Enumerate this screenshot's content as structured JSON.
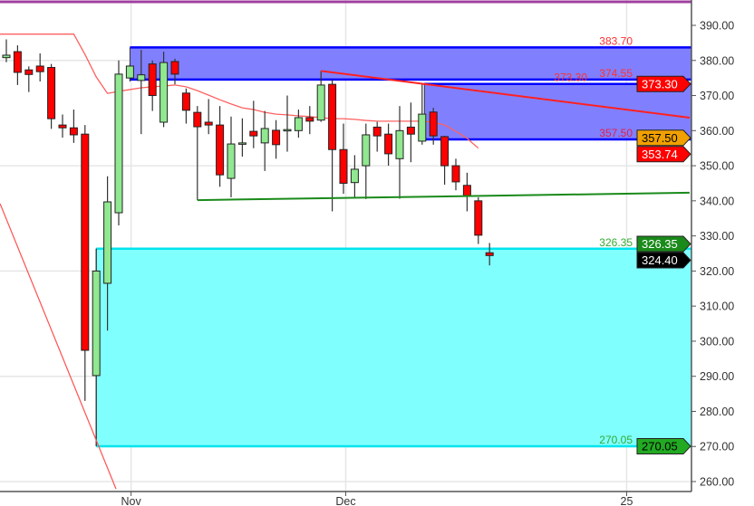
{
  "chart_data": {
    "type": "candlestick",
    "title": "",
    "ylim": [
      257,
      397
    ],
    "yticks": [
      390,
      380,
      370,
      360,
      350,
      340,
      330,
      320,
      310,
      300,
      290,
      280,
      270,
      260
    ],
    "ytick_labels": [
      "390.00",
      "380.00",
      "370.00",
      "360.00",
      "350.00",
      "340.00",
      "330.00",
      "320.00",
      "310.00",
      "300.00",
      "290.00",
      "280.00",
      "270.00",
      "260.00"
    ],
    "grid_y": [
      380,
      350,
      320,
      290,
      260
    ],
    "xticks": [
      {
        "label": "Nov",
        "index": 11.1
      },
      {
        "label": "Dec",
        "index": 30.2
      },
      {
        "label": "25",
        "index": 55.2
      }
    ],
    "colors": {
      "up": "#90e890",
      "down": "#ff0000",
      "zone_blue": "#8080ff",
      "zone_blue_edge": "#0000ff",
      "zone_cyan": "#80ffff",
      "zone_cyan_edge": "#00e5ee",
      "ma": "#ff6060",
      "trend_red": "#ff2020",
      "trend_green": "#1a8a1a",
      "top_line": "#a040a0"
    },
    "candles": [
      [
        380.8,
        381.5,
        386,
        379.5
      ],
      [
        382.5,
        376.6,
        384.3,
        373
      ],
      [
        377.3,
        376,
        378.3,
        371
      ],
      [
        378.4,
        376.8,
        382,
        374
      ],
      [
        378,
        363.4,
        379,
        360.5
      ],
      [
        361.6,
        360.8,
        364.6,
        358
      ],
      [
        360.8,
        358.8,
        366,
        356.5
      ],
      [
        359,
        297.4,
        361.6,
        283
      ],
      [
        290.2,
        320,
        326.4,
        270.05
      ],
      [
        316.5,
        339.7,
        347,
        303
      ],
      [
        336.6,
        376.1,
        380,
        333
      ],
      [
        375,
        378.4,
        379,
        374
      ],
      [
        374.3,
        375.9,
        383,
        359
      ],
      [
        379,
        370,
        380,
        365.6
      ],
      [
        362.4,
        379.4,
        382.5,
        361
      ],
      [
        379.7,
        376.1,
        380.5,
        373.2
      ],
      [
        370.7,
        365.8,
        372,
        362
      ],
      [
        365.2,
        361.1,
        367,
        340.2
      ],
      [
        362.4,
        361.6,
        369,
        359
      ],
      [
        361.6,
        347.4,
        367,
        344
      ],
      [
        346.4,
        356.2,
        364,
        341
      ],
      [
        356.5,
        356.5,
        363.5,
        352.6
      ],
      [
        359.8,
        358.5,
        368.5,
        355
      ],
      [
        356.5,
        360.6,
        365.6,
        348.5
      ],
      [
        360.1,
        356,
        363,
        352
      ],
      [
        360.3,
        360.3,
        370,
        354
      ],
      [
        360,
        363.7,
        366,
        358
      ],
      [
        363.7,
        362.7,
        367,
        359
      ],
      [
        363,
        373,
        377,
        362.5
      ],
      [
        373.2,
        354.6,
        374.5,
        337
      ],
      [
        354.6,
        345,
        362,
        342
      ],
      [
        345.2,
        349,
        353,
        341
      ],
      [
        350,
        358.8,
        362,
        340.5
      ],
      [
        361,
        358.5,
        362.5,
        354
      ],
      [
        359,
        353.4,
        362,
        350
      ],
      [
        352,
        360,
        367,
        340.6
      ],
      [
        361,
        359,
        368,
        351
      ],
      [
        357,
        364.7,
        373.3,
        356
      ],
      [
        365.3,
        358.5,
        366.5,
        356
      ],
      [
        358.3,
        350,
        358.5,
        344.6
      ],
      [
        350,
        345.4,
        352,
        343
      ],
      [
        344.4,
        341.5,
        348,
        337
      ],
      [
        340,
        330.2,
        341,
        327.7
      ],
      [
        325.2,
        324.4,
        328,
        321.6
      ]
    ],
    "moving_average": [
      387.5,
      387.5,
      387.5,
      387.5,
      387.5,
      387.5,
      387.5,
      381.7,
      375.3,
      370.6,
      371.2,
      371.7,
      372.2,
      372.5,
      372.7,
      373,
      372.5,
      371.4,
      370.1,
      368.8,
      367.6,
      366.5,
      366,
      365.2,
      364.7,
      364.5,
      364.2,
      364,
      363.7,
      363.4,
      363.4,
      363.2,
      362.9,
      362.7,
      362.7,
      362.7,
      362.7,
      362.7,
      362.4,
      361.6,
      359.8,
      357.8,
      355
    ],
    "zones": [
      {
        "name": "upper-blue-zone",
        "start": 11,
        "top": 383.7,
        "bottom": 374.55,
        "fill": "#8080ff",
        "edge": "#0000ff"
      },
      {
        "name": "lower-blue-zone",
        "start": 37.2,
        "top": 373.3,
        "bottom": 357.5,
        "fill": "#8080ff",
        "edge": "#0000ff"
      },
      {
        "name": "cyan-zone",
        "start": 8,
        "top": 326.35,
        "bottom": 270.05,
        "fill": "#80ffff",
        "edge": "#00e5ee"
      }
    ],
    "extra_lines": [
      {
        "name": "line-373-30",
        "start": 37.2,
        "price": 373.3,
        "color": "#0000ff"
      }
    ],
    "trendlines": [
      {
        "name": "red-trendline",
        "i1": 28,
        "p1": 377,
        "i2": 60.8,
        "p2": 363.7,
        "color": "#ff2020",
        "width": 2
      },
      {
        "name": "green-support-line",
        "i1": 17,
        "p1": 340.2,
        "i2": 60.8,
        "p2": 342.3,
        "color": "#1a8a1a",
        "width": 2
      },
      {
        "name": "red-diagonal-line",
        "i1": -0.56,
        "p1": 339.2,
        "i2": 9.76,
        "p2": 257.9,
        "color": "#ff5050",
        "width": 1.2
      }
    ],
    "level_labels": [
      {
        "text": "383.70",
        "price": 383.7,
        "color": "#ff3030"
      },
      {
        "text": "374.55",
        "price": 374.55,
        "color": "#ff3030"
      },
      {
        "text": "373.30",
        "price": 373.3,
        "color": "#ff3030"
      },
      {
        "text": "357.50",
        "price": 357.5,
        "color": "#e0204a"
      },
      {
        "text": "326.35",
        "price": 326.35,
        "color": "#33aa33"
      },
      {
        "text": "270.05",
        "price": 270.05,
        "color": "#33aa33"
      }
    ],
    "price_tags": [
      {
        "text": "373.30",
        "price": 373.3,
        "bg": "#ff0000",
        "fg": "#ffffff"
      },
      {
        "text": "357.50",
        "price": 357.5,
        "bg": "#f0a000",
        "fg": "#000000"
      },
      {
        "text": "353.74",
        "price": 353.74,
        "bg": "#ff0000",
        "fg": "#ffffff"
      },
      {
        "text": "326.35",
        "price": 326.35,
        "bg": "#1a8a1a",
        "fg": "#ffffff"
      },
      {
        "text": "324.40",
        "price": 324.4,
        "bg": "#000000",
        "fg": "#ffffff"
      },
      {
        "text": "270.05",
        "price": 270.05,
        "bg": "#22aa22",
        "fg": "#000000"
      }
    ]
  }
}
